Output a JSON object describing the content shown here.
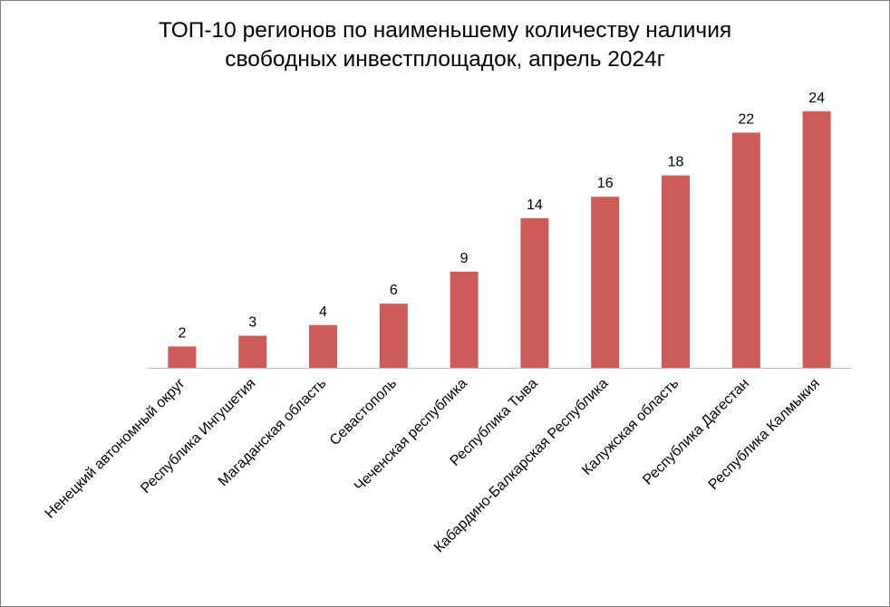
{
  "chart_data": {
    "type": "bar",
    "title_lines": [
      "ТОП-10 регионов по наименьшему количеству наличия",
      "свободных инвестплощадок, апрель 2024г"
    ],
    "categories": [
      "Ненецкий автономный округ",
      "Республика Ингушетия",
      "Магаданская область",
      "Севастополь",
      "Чеченская республика",
      "Республика Тыва",
      "Кабардино-Балкарская Республика",
      "Калужская область",
      "Республика Дагестан",
      "Республика Калмыкия"
    ],
    "values": [
      2,
      3,
      4,
      6,
      9,
      14,
      16,
      18,
      22,
      24
    ],
    "ylim": [
      0,
      24
    ],
    "grid": false,
    "legend": "none",
    "bar_color": "#cd5b57",
    "axis_color": "#bfbfbf"
  }
}
